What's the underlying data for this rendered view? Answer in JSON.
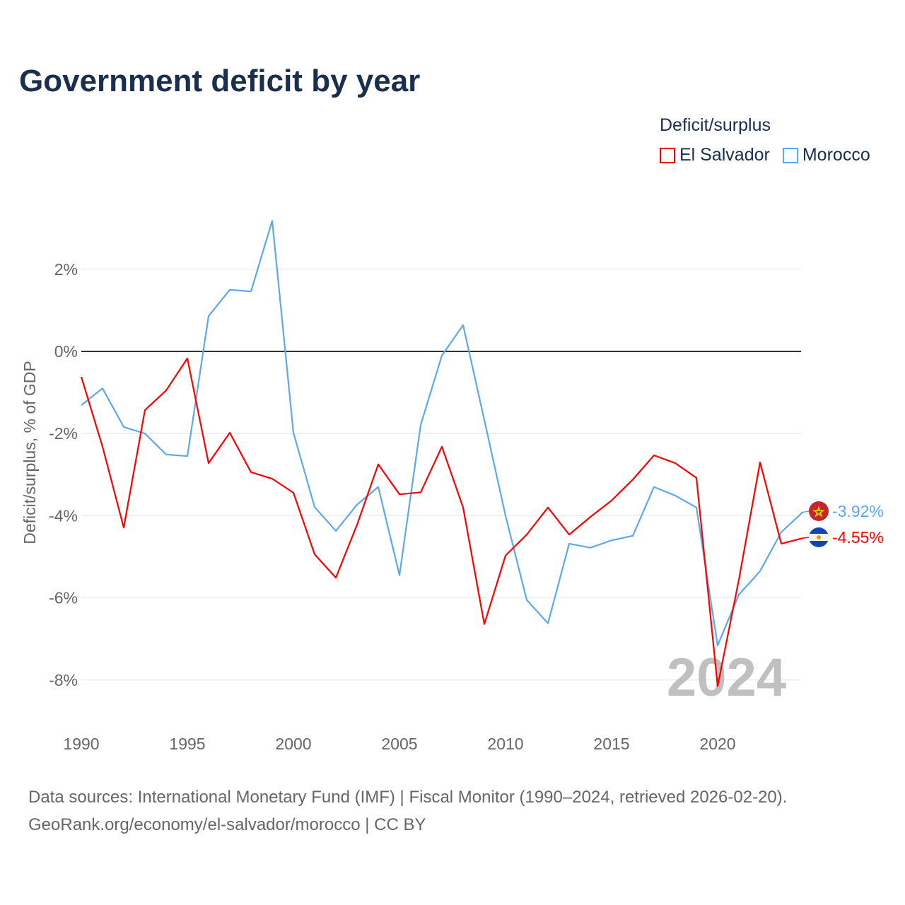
{
  "chart_data": {
    "type": "line",
    "title": "Government deficit by year",
    "ylabel": "Deficit/surplus, % of GDP",
    "xlabel": "",
    "xlim": [
      1990,
      2024
    ],
    "ylim": [
      -9,
      3.5
    ],
    "x_ticks": [
      1990,
      1995,
      2000,
      2005,
      2010,
      2015,
      2020
    ],
    "x_tick_labels": [
      "1990",
      "1995",
      "2000",
      "2005",
      "2010",
      "2015",
      "2020"
    ],
    "y_ticks": [
      2,
      0,
      -2,
      -4,
      -6,
      -8
    ],
    "y_tick_labels": [
      "2%",
      "0%",
      "-2%",
      "-4%",
      "-6%",
      "-8%"
    ],
    "grid": true,
    "legend_title": "Deficit/surplus",
    "legend_position": "top-right",
    "watermark_year": "2024",
    "x": [
      1990,
      1991,
      1992,
      1993,
      1994,
      1995,
      1996,
      1997,
      1998,
      1999,
      2000,
      2001,
      2002,
      2003,
      2004,
      2005,
      2006,
      2007,
      2008,
      2009,
      2010,
      2011,
      2012,
      2013,
      2014,
      2015,
      2016,
      2017,
      2018,
      2019,
      2020,
      2021,
      2022,
      2023,
      2024
    ],
    "series": [
      {
        "name": "El Salvador",
        "color": "#ff0000",
        "end_label": "-4.55%",
        "values": [
          -0.62,
          -2.32,
          -4.29,
          -1.43,
          -0.95,
          -0.17,
          -2.72,
          -1.98,
          -2.94,
          -3.1,
          -3.44,
          -4.94,
          -5.51,
          -4.22,
          -2.75,
          -3.48,
          -3.43,
          -2.32,
          -3.8,
          -6.64,
          -4.97,
          -4.46,
          -3.8,
          -4.46,
          -4.03,
          -3.63,
          -3.12,
          -2.53,
          -2.72,
          -3.08,
          -8.15,
          -5.56,
          -2.7,
          -4.68,
          -4.55
        ]
      },
      {
        "name": "Morocco",
        "color": "#5ea8ee",
        "end_label": "-3.92%",
        "values": [
          -1.31,
          -0.9,
          -1.84,
          -2.0,
          -2.51,
          -2.55,
          0.86,
          1.5,
          1.46,
          3.18,
          -1.98,
          -3.79,
          -4.37,
          -3.73,
          -3.3,
          -5.45,
          -1.79,
          -0.1,
          0.64,
          -1.67,
          -4.0,
          -6.05,
          -6.62,
          -4.68,
          -4.78,
          -4.6,
          -4.49,
          -3.3,
          -3.51,
          -3.8,
          -7.16,
          -5.92,
          -5.35,
          -4.4,
          -3.92
        ]
      }
    ]
  },
  "source": {
    "line1": "Data sources: International Monetary Fund (IMF) | Fiscal Monitor (1990–2024, retrieved 2026-02-20).",
    "line2": "GeoRank.org/economy/el-salvador/morocco | CC BY"
  }
}
